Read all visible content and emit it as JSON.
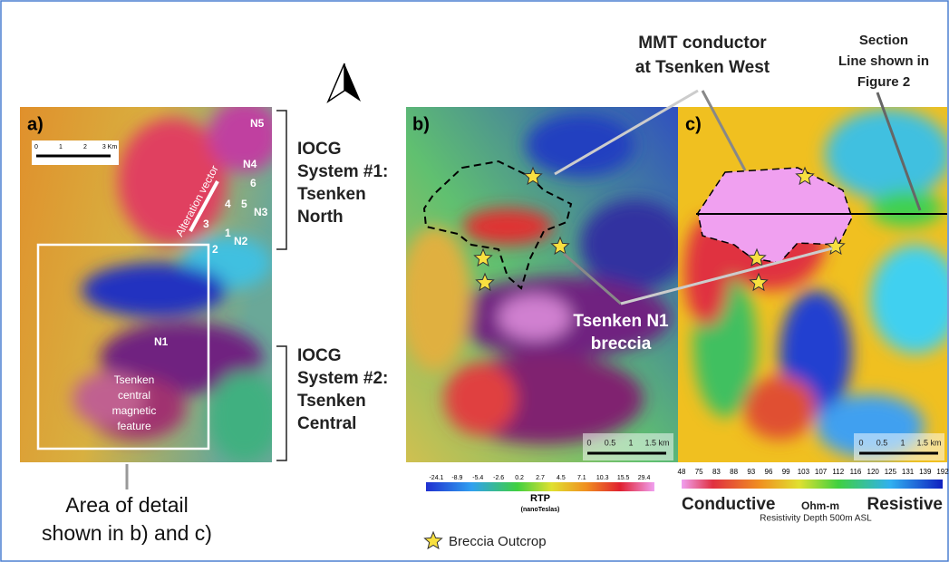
{
  "panel_a": {
    "label": "a)",
    "scale_bar": [
      "0",
      "1",
      "2",
      "3 Km"
    ],
    "targets": [
      "N5",
      "N4",
      "N3",
      "N2",
      "N1"
    ],
    "drill_holes": [
      "6",
      "5",
      "4",
      "3",
      "1",
      "2"
    ],
    "vector_label": "Alteration vector",
    "feature_label": [
      "Tsenken",
      "central",
      "magnetic",
      "feature"
    ]
  },
  "callouts": {
    "system1": [
      "IOCG",
      "System #1:",
      "Tsenken",
      "North"
    ],
    "system2": [
      "IOCG",
      "System #2:",
      "Tsenken",
      "Central"
    ],
    "area": [
      "Area of detail",
      "shown in b) and c)"
    ],
    "mmt": [
      "MMT conductor",
      "at Tsenken West"
    ],
    "section": [
      "Section",
      "Line shown in",
      "Figure 2"
    ],
    "n1": [
      "Tsenken N1",
      "breccia"
    ]
  },
  "panel_b": {
    "label": "b)",
    "scale_bar": [
      "0",
      "0.5",
      "1",
      "1.5 km"
    ]
  },
  "panel_c": {
    "label": "c)",
    "scale_bar": [
      "0",
      "0.5",
      "1",
      "1.5 km"
    ]
  },
  "rtp_legend": {
    "ticks": [
      "-24.1",
      "-8.9",
      "-5.4",
      "-2.6",
      "0.2",
      "2.7",
      "4.5",
      "7.1",
      "10.3",
      "15.5",
      "29.4"
    ],
    "title": "RTP",
    "unit": "(nanoTeslas)"
  },
  "resistivity_legend": {
    "ticks": [
      "48",
      "75",
      "83",
      "88",
      "93",
      "96",
      "99",
      "103",
      "107",
      "112",
      "116",
      "120",
      "125",
      "131",
      "139",
      "192"
    ],
    "low": "Conductive",
    "unit": "Ohm-m",
    "high": "Resistive",
    "caption": "Resistivity Depth 500m ASL"
  },
  "legend": {
    "breccia": "Breccia Outcrop"
  }
}
